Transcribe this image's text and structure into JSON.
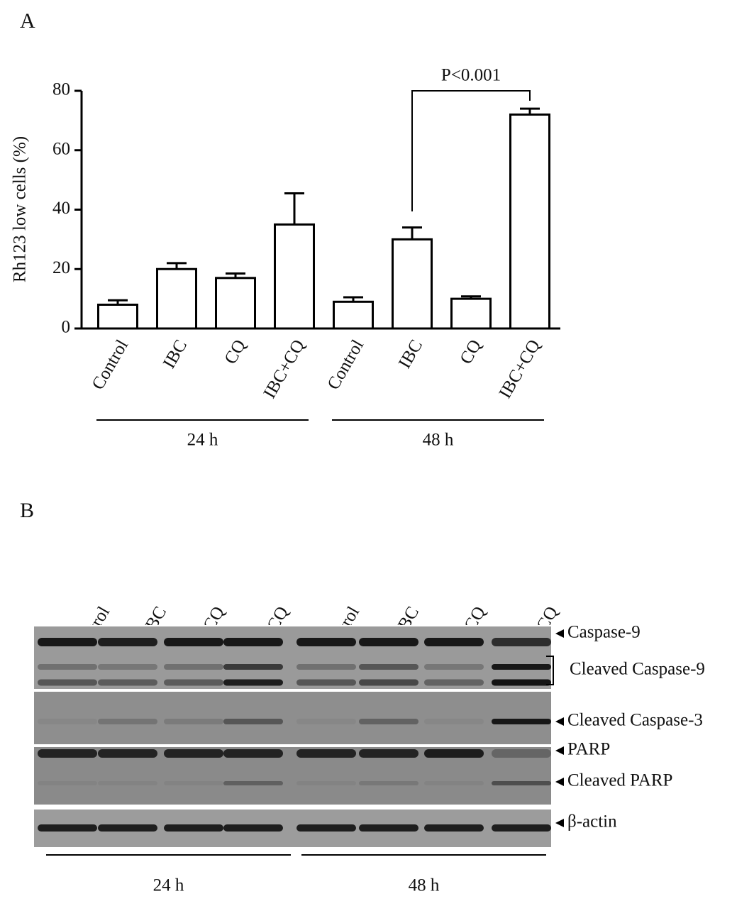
{
  "panel_labels": [
    "A",
    "B"
  ],
  "chart_data": {
    "type": "bar",
    "y_label": "Rh123 low cells (%)",
    "categories": [
      "Control",
      "IBC",
      "CQ",
      "IBC+CQ",
      "Control",
      "IBC",
      "CQ",
      "IBC+CQ"
    ],
    "values": [
      8,
      20,
      17,
      35,
      9,
      30,
      10,
      72
    ],
    "errors": [
      1.5,
      2,
      1.5,
      10.5,
      1.5,
      4,
      0.8,
      2
    ],
    "groups": [
      "24 h",
      "48 h"
    ],
    "annotation": "P<0.001",
    "color": "#ffffff",
    "ylim": [
      0,
      80
    ],
    "yticks": [
      0,
      20,
      40,
      60,
      80
    ],
    "grid": false
  },
  "blot": {
    "lanes": [
      "Control",
      "IBC",
      "CQ",
      "IBC+CQ",
      "Control",
      "IBC",
      "CQ",
      "IBC+CQ"
    ],
    "bands": [
      "Caspase-9",
      "Cleaved Caspase-9",
      "Cleaved Caspase-3",
      "PARP",
      "Cleaved PARP",
      "β-actin"
    ],
    "groups": [
      "24 h",
      "48 h"
    ]
  }
}
